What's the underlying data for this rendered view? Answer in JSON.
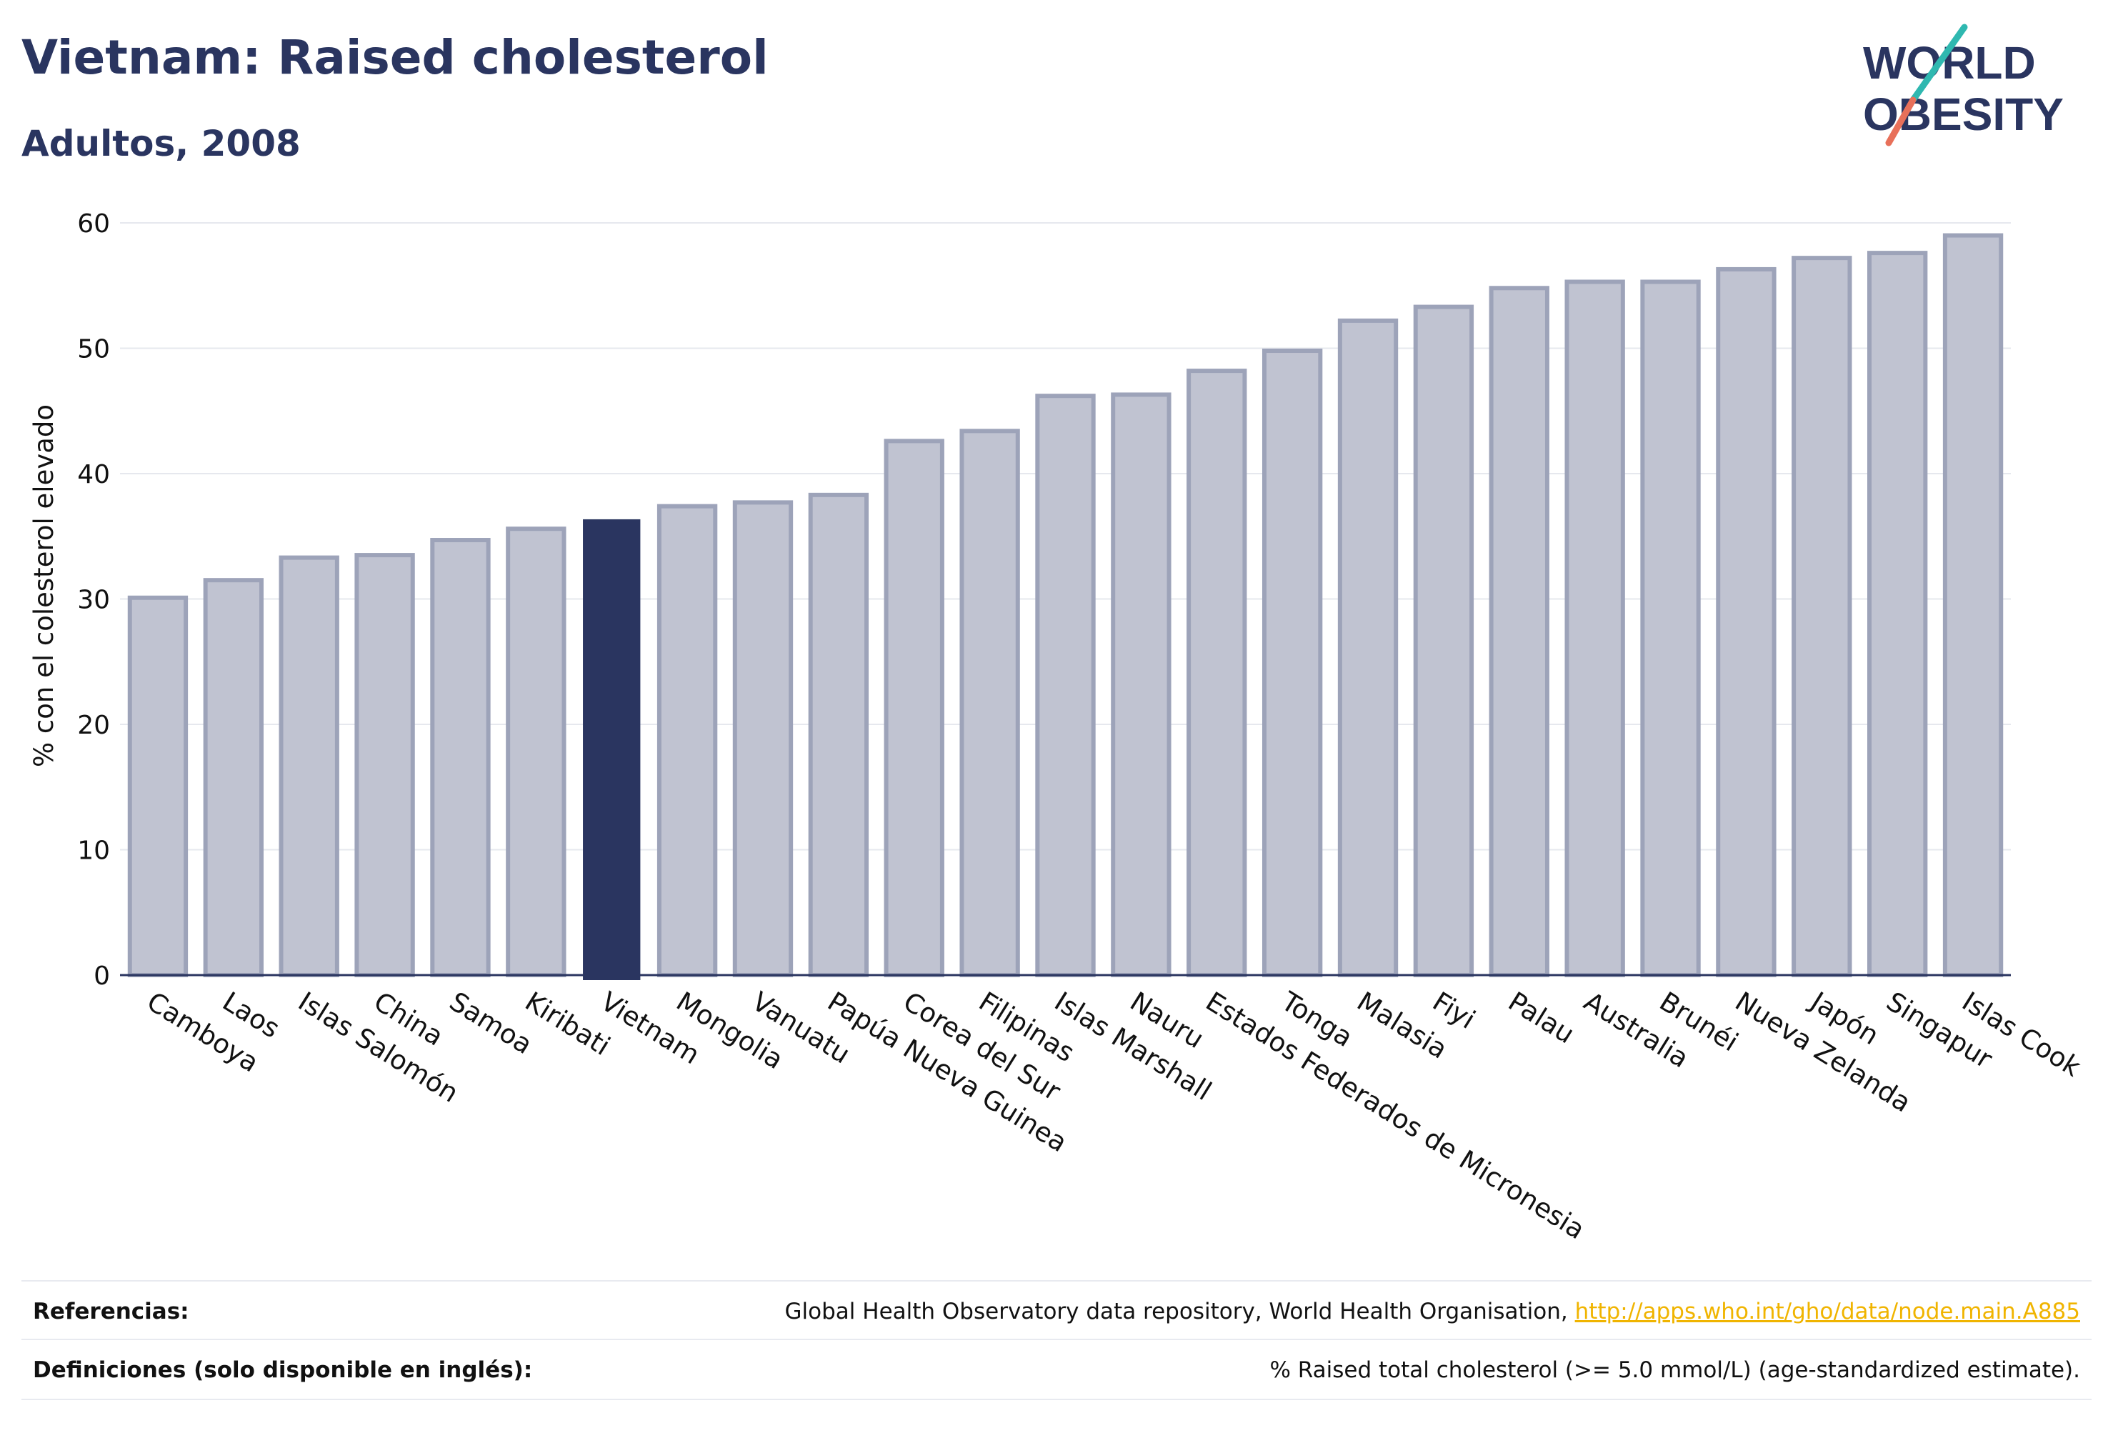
{
  "header": {
    "title": "Vietnam: Raised cholesterol",
    "subtitle": "Adultos, 2008"
  },
  "logo": {
    "line1": "WORLD",
    "line2": "OBESITY"
  },
  "chart_data": {
    "type": "bar",
    "title": "Vietnam: Raised cholesterol",
    "subtitle": "Adultos, 2008",
    "ylabel": "% con el colesterol elevado",
    "xlabel": "",
    "ylim": [
      0,
      60
    ],
    "yticks": [
      0,
      10,
      20,
      30,
      40,
      50,
      60
    ],
    "grid": true,
    "highlight": "Vietnam",
    "colors": {
      "bar": "#c0c3d1",
      "bar_edge": "#9da3b9",
      "highlight": "#2a3560",
      "grid": "#e6e8ee",
      "axis": "#2a3560"
    },
    "categories": [
      "Camboya",
      "Laos",
      "Islas Salomón",
      "China",
      "Samoa",
      "Kiribati",
      "Vietnam",
      "Mongolia",
      "Vanuatu",
      "Papúa Nueva Guinea",
      "Corea del Sur",
      "Filipinas",
      "Islas Marshall",
      "Nauru",
      "Estados Federados de Micronesia",
      "Tonga",
      "Malasia",
      "Fiyi",
      "Palau",
      "Australia",
      "Brunéi",
      "Nueva Zelanda",
      "Japón",
      "Singapur",
      "Islas Cook"
    ],
    "values": [
      30.1,
      31.5,
      33.3,
      33.5,
      34.7,
      35.6,
      36.3,
      37.4,
      37.7,
      38.3,
      42.6,
      43.4,
      46.2,
      46.3,
      48.2,
      49.8,
      52.2,
      53.3,
      54.8,
      55.3,
      55.3,
      56.3,
      57.2,
      57.6,
      59.0
    ]
  },
  "footer": {
    "references_label": "Referencias:",
    "references_text": "Global Health Observatory data repository, World Health Organisation, ",
    "references_link": "http://apps.who.int/gho/data/node.main.A885",
    "definitions_label": "Definiciones (solo disponible en inglés):",
    "definitions_text": "% Raised total cholesterol (>= 5.0 mmol/L) (age-standardized estimate)."
  }
}
